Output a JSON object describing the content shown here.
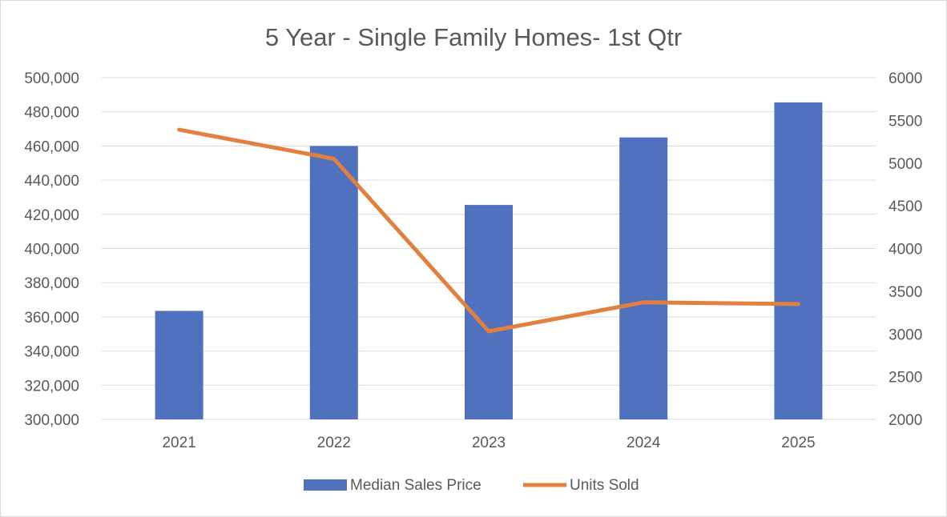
{
  "chart_data": {
    "type": "bar",
    "title": "5 Year - Single Family Homes- 1st Qtr",
    "categories": [
      "2021",
      "2022",
      "2023",
      "2024",
      "2025"
    ],
    "series": [
      {
        "name": "Median Sales Price",
        "type": "bar",
        "axis": "left",
        "color": "#4f71be",
        "values": [
          363500,
          460000,
          425500,
          465000,
          485500
        ]
      },
      {
        "name": "Units Sold",
        "type": "line",
        "axis": "right",
        "color": "#e1803f",
        "values": [
          5390,
          5050,
          3030,
          3370,
          3350
        ]
      }
    ],
    "left_axis": {
      "ylim": [
        300000,
        500000
      ],
      "ticks": [
        300000,
        320000,
        340000,
        360000,
        380000,
        400000,
        420000,
        440000,
        460000,
        480000,
        500000
      ],
      "tick_labels": [
        "300,000",
        "320,000",
        "340,000",
        "360,000",
        "380,000",
        "400,000",
        "420,000",
        "440,000",
        "460,000",
        "480,000",
        "500,000"
      ]
    },
    "right_axis": {
      "ylim": [
        2000,
        6000
      ],
      "ticks": [
        2000,
        2500,
        3000,
        3500,
        4000,
        4500,
        5000,
        5500,
        6000
      ],
      "tick_labels": [
        "2000",
        "2500",
        "3000",
        "3500",
        "4000",
        "4500",
        "5000",
        "5500",
        "6000"
      ]
    },
    "grid": true,
    "legend": "bottom",
    "colors": {
      "text": "#595959",
      "grid": "#d9d9d9"
    }
  }
}
